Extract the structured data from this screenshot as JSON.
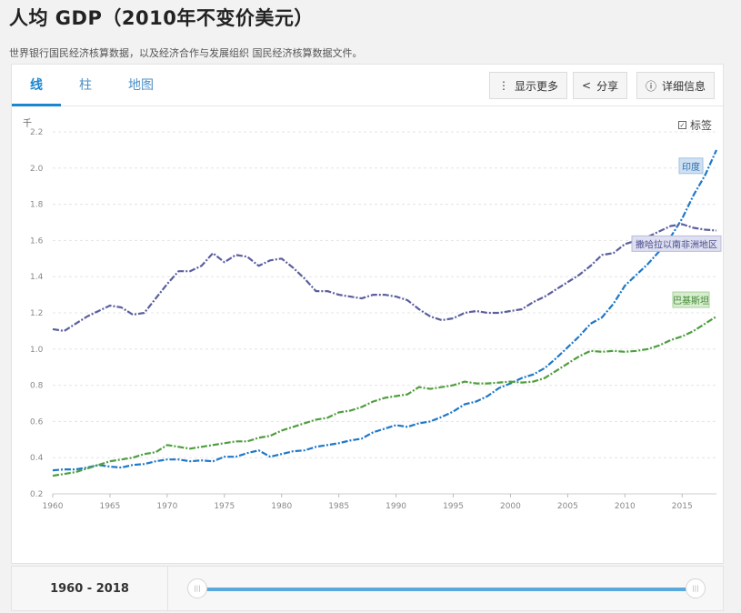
{
  "page": {
    "title": "人均 GDP（2010年不变价美元）",
    "subtitle": "世界银行国民经济核算数据，以及经济合作与发展组织 国民经济核算数据文件。"
  },
  "tabs": [
    {
      "label": "线",
      "active": true
    },
    {
      "label": "柱",
      "active": false
    },
    {
      "label": "地图",
      "active": false
    }
  ],
  "toolbar": {
    "show_more": "显示更多",
    "share": "分享",
    "details": "详细信息"
  },
  "labels_toggle": {
    "label": "标签",
    "checked": true
  },
  "slider": {
    "range_label": "1960 - 2018",
    "start_year": 1960,
    "end_year": 2018
  },
  "colors": {
    "india": "#1f78c8",
    "ssa": "#5a5f9e",
    "pakistan": "#4e9e3f",
    "accent": "#1a86d0"
  },
  "chart_data": {
    "type": "line",
    "ylabel": "千",
    "ylim": [
      0.2,
      2.2
    ],
    "yticks": [
      0.2,
      0.4,
      0.6,
      0.8,
      1.0,
      1.2,
      1.4,
      1.6,
      1.8,
      2.0,
      2.2
    ],
    "xlim": [
      1960,
      2018
    ],
    "xticks": [
      1960,
      1965,
      1970,
      1975,
      1980,
      1985,
      1990,
      1995,
      2000,
      2005,
      2010,
      2015
    ],
    "grid": true,
    "x": [
      1960,
      1961,
      1962,
      1963,
      1964,
      1965,
      1966,
      1967,
      1968,
      1969,
      1970,
      1971,
      1972,
      1973,
      1974,
      1975,
      1976,
      1977,
      1978,
      1979,
      1980,
      1981,
      1982,
      1983,
      1984,
      1985,
      1986,
      1987,
      1988,
      1989,
      1990,
      1991,
      1992,
      1993,
      1994,
      1995,
      1996,
      1997,
      1998,
      1999,
      2000,
      2001,
      2002,
      2003,
      2004,
      2005,
      2006,
      2007,
      2008,
      2009,
      2010,
      2011,
      2012,
      2013,
      2014,
      2015,
      2016,
      2017,
      2018
    ],
    "series": [
      {
        "name": "印度",
        "color": "#1f78c8",
        "values": [
          0.33,
          0.335,
          0.335,
          0.345,
          0.36,
          0.35,
          0.345,
          0.36,
          0.365,
          0.38,
          0.39,
          0.39,
          0.38,
          0.385,
          0.38,
          0.405,
          0.405,
          0.425,
          0.44,
          0.405,
          0.42,
          0.435,
          0.44,
          0.46,
          0.47,
          0.48,
          0.495,
          0.505,
          0.54,
          0.56,
          0.58,
          0.57,
          0.59,
          0.6,
          0.625,
          0.655,
          0.695,
          0.71,
          0.74,
          0.785,
          0.81,
          0.84,
          0.86,
          0.895,
          0.95,
          1.01,
          1.07,
          1.14,
          1.175,
          1.25,
          1.35,
          1.41,
          1.47,
          1.54,
          1.62,
          1.72,
          1.85,
          1.96,
          2.1
        ]
      },
      {
        "name": "撒哈拉以南非洲地区",
        "color": "#5a5f9e",
        "values": [
          1.11,
          1.1,
          1.14,
          1.18,
          1.21,
          1.24,
          1.23,
          1.19,
          1.2,
          1.28,
          1.36,
          1.43,
          1.43,
          1.46,
          1.53,
          1.48,
          1.52,
          1.51,
          1.46,
          1.49,
          1.5,
          1.45,
          1.39,
          1.32,
          1.32,
          1.3,
          1.29,
          1.28,
          1.3,
          1.3,
          1.29,
          1.27,
          1.22,
          1.18,
          1.16,
          1.17,
          1.2,
          1.21,
          1.2,
          1.2,
          1.21,
          1.22,
          1.26,
          1.29,
          1.33,
          1.37,
          1.41,
          1.46,
          1.52,
          1.53,
          1.58,
          1.6,
          1.62,
          1.65,
          1.68,
          1.69,
          1.67,
          1.66,
          1.655
        ]
      },
      {
        "name": "巴基斯坦",
        "color": "#4e9e3f",
        "values": [
          0.3,
          0.31,
          0.32,
          0.34,
          0.36,
          0.38,
          0.39,
          0.4,
          0.42,
          0.43,
          0.47,
          0.46,
          0.45,
          0.46,
          0.47,
          0.48,
          0.49,
          0.49,
          0.51,
          0.52,
          0.55,
          0.57,
          0.59,
          0.61,
          0.62,
          0.65,
          0.66,
          0.68,
          0.71,
          0.73,
          0.74,
          0.75,
          0.79,
          0.78,
          0.79,
          0.8,
          0.82,
          0.81,
          0.81,
          0.815,
          0.82,
          0.815,
          0.82,
          0.84,
          0.88,
          0.92,
          0.96,
          0.99,
          0.985,
          0.99,
          0.985,
          0.99,
          1.0,
          1.02,
          1.05,
          1.07,
          1.1,
          1.14,
          1.18
        ]
      }
    ]
  }
}
